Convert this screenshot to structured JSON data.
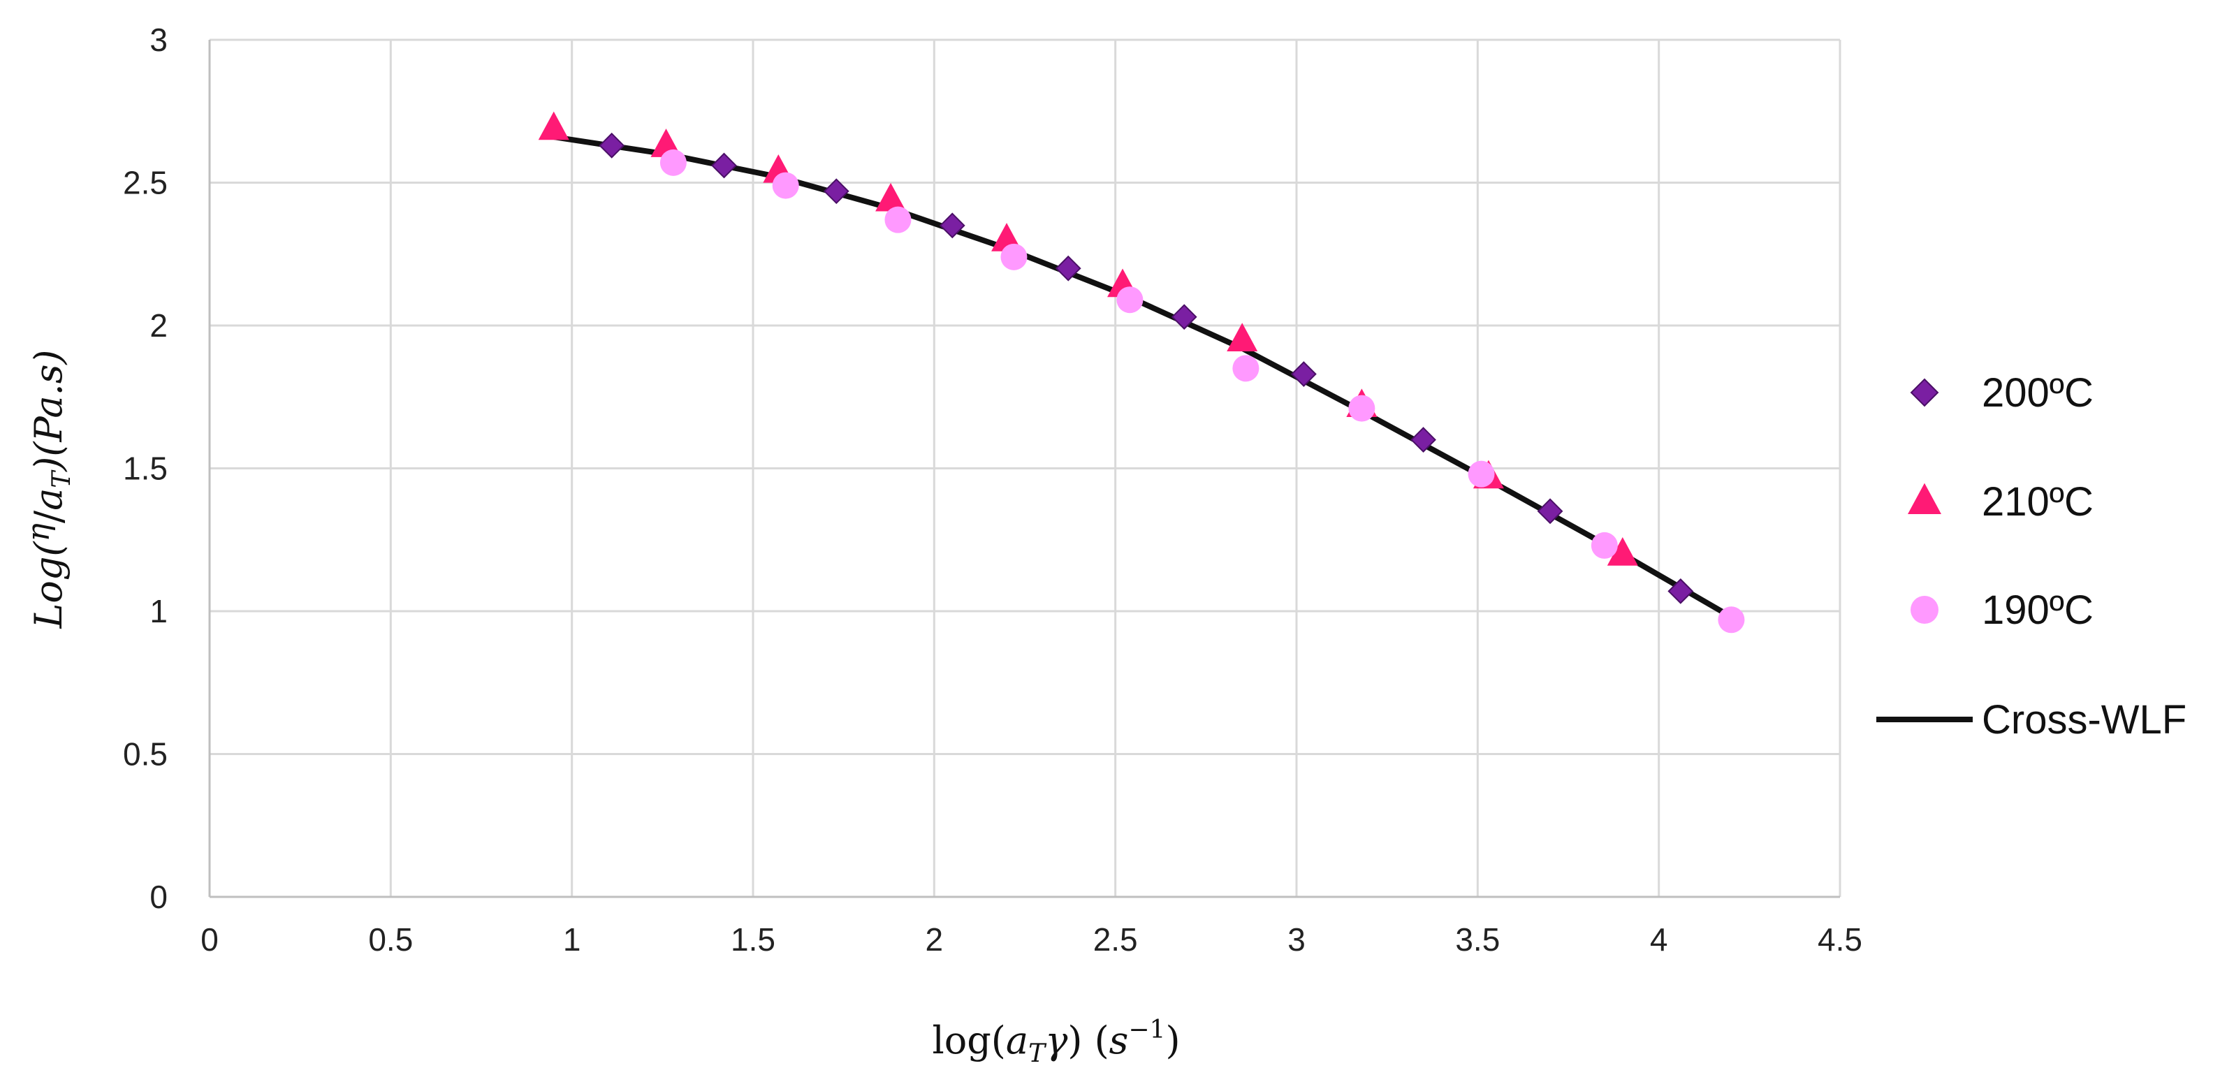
{
  "chart_data": {
    "type": "scatter",
    "title": "",
    "xlabel": "log(a_T γ) (s^-1)",
    "ylabel": "Log(η/a_T)(Pa.s)",
    "xlim": [
      0,
      4.5
    ],
    "ylim": [
      0,
      3
    ],
    "x_ticks": [
      "0",
      "0.5",
      "1",
      "1.5",
      "2",
      "2.5",
      "3",
      "3.5",
      "4",
      "4.5"
    ],
    "y_ticks": [
      "0",
      "0.5",
      "1",
      "1.5",
      "2",
      "2.5",
      "3"
    ],
    "grid": true,
    "legend_position": "right",
    "series": [
      {
        "name": "200ºC",
        "marker": "diamond",
        "color": "#7a1fa2",
        "x": [
          1.11,
          1.42,
          1.73,
          2.05,
          2.37,
          2.69,
          3.02,
          3.35,
          3.7,
          4.06
        ],
        "y": [
          2.63,
          2.56,
          2.47,
          2.35,
          2.2,
          2.03,
          1.83,
          1.6,
          1.35,
          1.07
        ]
      },
      {
        "name": "210ºC",
        "marker": "triangle",
        "color": "#ff1a75",
        "x": [
          0.95,
          1.26,
          1.57,
          1.88,
          2.2,
          2.52,
          2.85,
          3.18,
          3.53,
          3.9
        ],
        "y": [
          2.69,
          2.63,
          2.54,
          2.44,
          2.3,
          2.14,
          1.95,
          1.72,
          1.47,
          1.2
        ]
      },
      {
        "name": "190ºC",
        "marker": "circle",
        "color": "#ff99ff",
        "x": [
          1.28,
          1.59,
          1.9,
          2.22,
          2.54,
          2.86,
          3.18,
          3.51,
          3.85,
          4.2
        ],
        "y": [
          2.57,
          2.49,
          2.37,
          2.24,
          2.09,
          1.85,
          1.71,
          1.48,
          1.23,
          0.97
        ]
      },
      {
        "name": "Cross-WLF",
        "marker": "line",
        "color": "#111111",
        "x": [
          0.95,
          1.26,
          1.57,
          1.88,
          2.2,
          2.52,
          2.85,
          3.18,
          3.53,
          3.9,
          4.2
        ],
        "y": [
          2.66,
          2.6,
          2.52,
          2.41,
          2.27,
          2.11,
          1.92,
          1.7,
          1.46,
          1.2,
          0.98
        ]
      }
    ]
  },
  "ylabel_parts": {
    "pre": "Log(",
    "num": "η",
    "slash": "/",
    "den_a": "a",
    "den_sub": "T",
    "post": ")(Pa.s)"
  },
  "xlabel_parts": {
    "pre": "log(",
    "a": "a",
    "sub": "T",
    "gamma": "γ",
    "mid": ")  (",
    "s": "s",
    "exp": "−1",
    "post": ")"
  }
}
